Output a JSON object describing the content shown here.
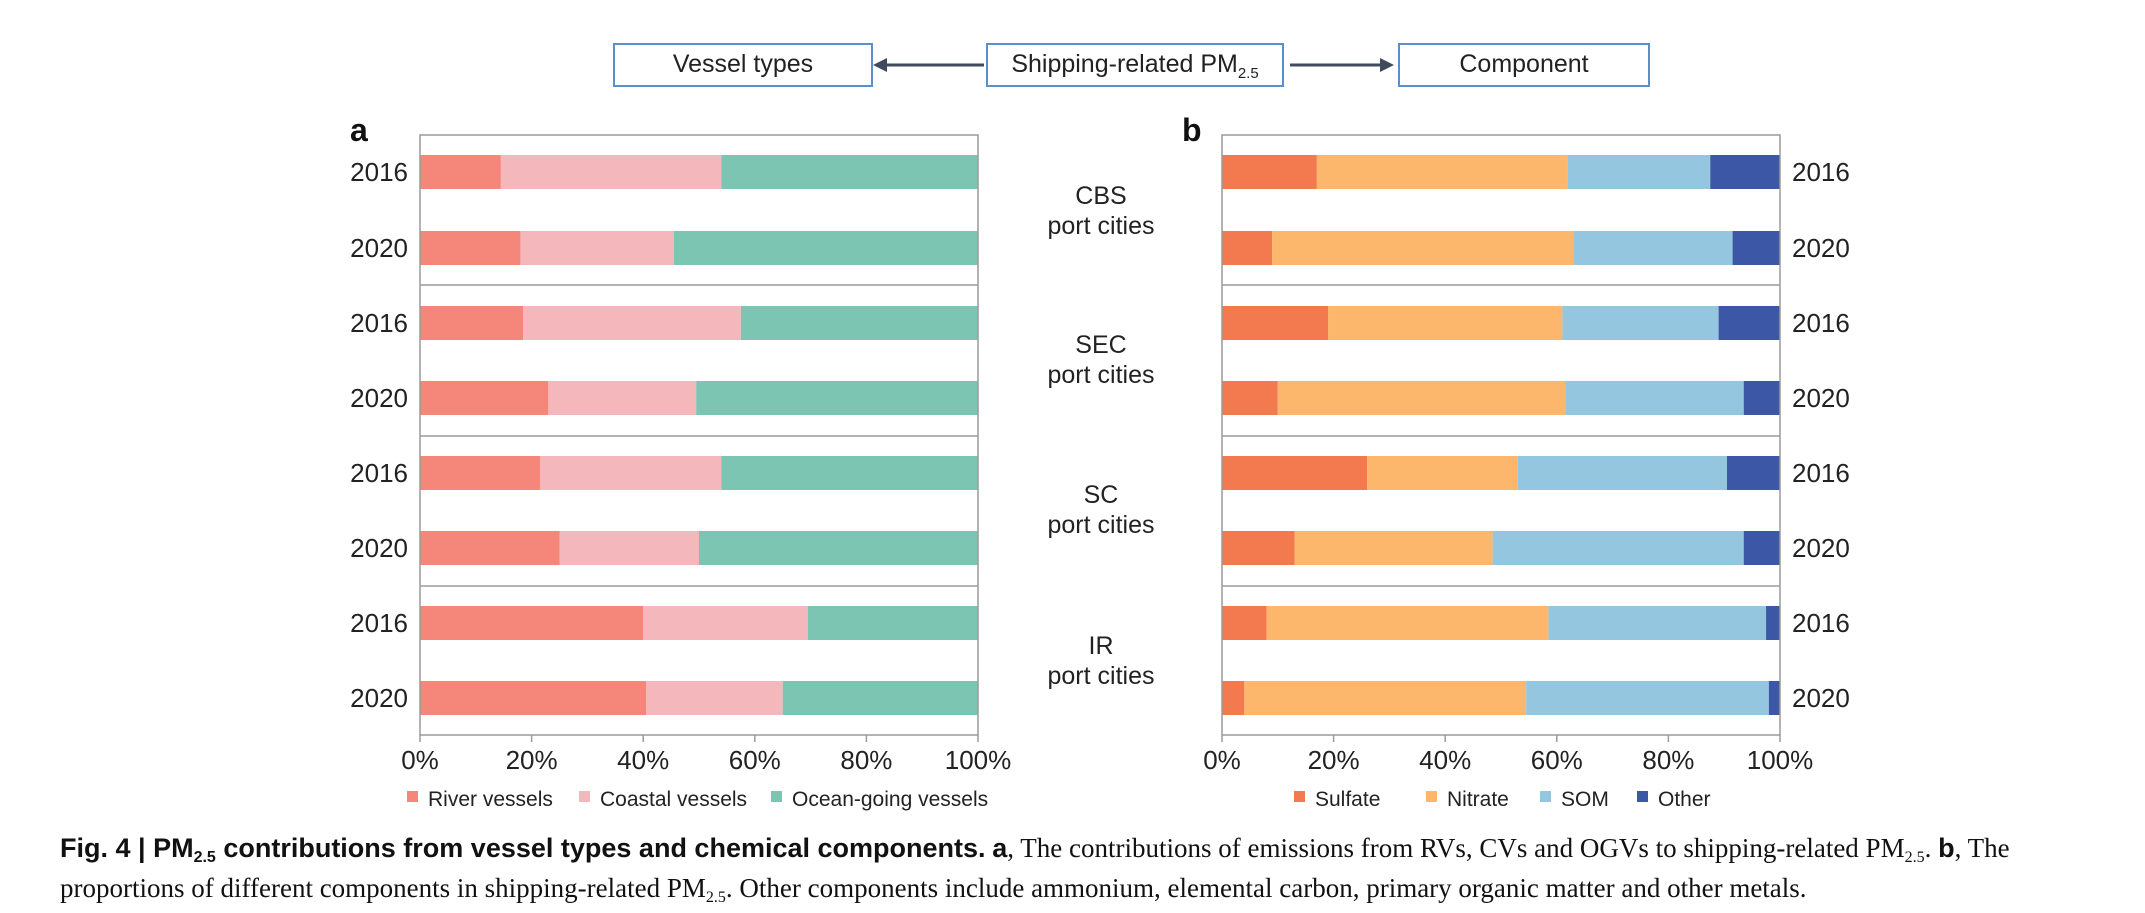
{
  "header": {
    "left_box": "Vessel types",
    "center_box": "Shipping-related PM",
    "center_box_sub": "2.5",
    "right_box": "Component"
  },
  "panel_labels": {
    "a": "a",
    "b": "b"
  },
  "region_labels": [
    {
      "line1": "CBS",
      "line2": "port cities"
    },
    {
      "line1": "SEC",
      "line2": "port cities"
    },
    {
      "line1": "SC",
      "line2": "port cities"
    },
    {
      "line1": "IR",
      "line2": "port cities"
    }
  ],
  "colors": {
    "river": "#f5877a",
    "coastal": "#f4b8bc",
    "ocean": "#7dc5b3",
    "sulfate": "#f37a4f",
    "nitrate": "#fdb76c",
    "som": "#95c6e0",
    "other": "#3c57a5",
    "arrow": "#3f4a5c",
    "box_border": "#5b8fc9"
  },
  "chart_data": [
    {
      "type": "bar",
      "orientation": "horizontal",
      "stacked": true,
      "panel": "a",
      "categories": [
        "2016",
        "2020",
        "2016",
        "2020",
        "2016",
        "2020",
        "2016",
        "2020"
      ],
      "groups": [
        "CBS port cities",
        "SEC port cities",
        "SC port cities",
        "IR port cities"
      ],
      "series": [
        {
          "name": "River vessels",
          "color": "#f5877a",
          "values": [
            14.5,
            18,
            18.5,
            23,
            21.5,
            25,
            40,
            40.5
          ]
        },
        {
          "name": "Coastal vessels",
          "color": "#f4b8bc",
          "values": [
            39.5,
            27.5,
            39,
            26.5,
            32.5,
            25,
            29.5,
            24.5
          ]
        },
        {
          "name": "Ocean-going vessels",
          "color": "#7dc5b3",
          "values": [
            46,
            54.5,
            42.5,
            50.5,
            46,
            50,
            30.5,
            35
          ]
        }
      ],
      "xlim": [
        0,
        100
      ],
      "xticks": [
        "0%",
        "20%",
        "40%",
        "60%",
        "80%",
        "100%"
      ],
      "ytick_side": "left",
      "legend": "bottom"
    },
    {
      "type": "bar",
      "orientation": "horizontal",
      "stacked": true,
      "panel": "b",
      "categories": [
        "2016",
        "2020",
        "2016",
        "2020",
        "2016",
        "2020",
        "2016",
        "2020"
      ],
      "groups": [
        "CBS port cities",
        "SEC port cities",
        "SC port cities",
        "IR port cities"
      ],
      "series": [
        {
          "name": "Sulfate",
          "color": "#f37a4f",
          "values": [
            17,
            9,
            19,
            10,
            26,
            13,
            8,
            4
          ]
        },
        {
          "name": "Nitrate",
          "color": "#fdb76c",
          "values": [
            45,
            54,
            42,
            51.5,
            27,
            35.5,
            50.5,
            50.5
          ]
        },
        {
          "name": "SOM",
          "color": "#95c6e0",
          "values": [
            25.5,
            28.5,
            28,
            32,
            37.5,
            45,
            39,
            43.5
          ]
        },
        {
          "name": "Other",
          "color": "#3c57a5",
          "values": [
            12.5,
            8.5,
            11,
            6.5,
            9.5,
            6.5,
            2.5,
            2
          ]
        }
      ],
      "xlim": [
        0,
        100
      ],
      "xticks": [
        "0%",
        "20%",
        "40%",
        "60%",
        "80%",
        "100%"
      ],
      "ytick_side": "right",
      "legend": "bottom"
    }
  ],
  "caption": {
    "fig_label": "Fig. 4 | ",
    "title_main": "PM",
    "title_sub": "2.5",
    "title_rest": " contributions from vessel types and chemical components.",
    "a_label": "a",
    "a_text_1": ", The contributions of emissions from RVs, CVs and OGVs to shipping-related PM",
    "a_sub": "2.5",
    "a_text_2": ". ",
    "b_label": "b",
    "b_text_1": ", The proportions of different components in shipping-related PM",
    "b_sub": "2.5",
    "b_text_2": ". Other components include ammonium, elemental carbon, primary organic matter and other metals."
  }
}
